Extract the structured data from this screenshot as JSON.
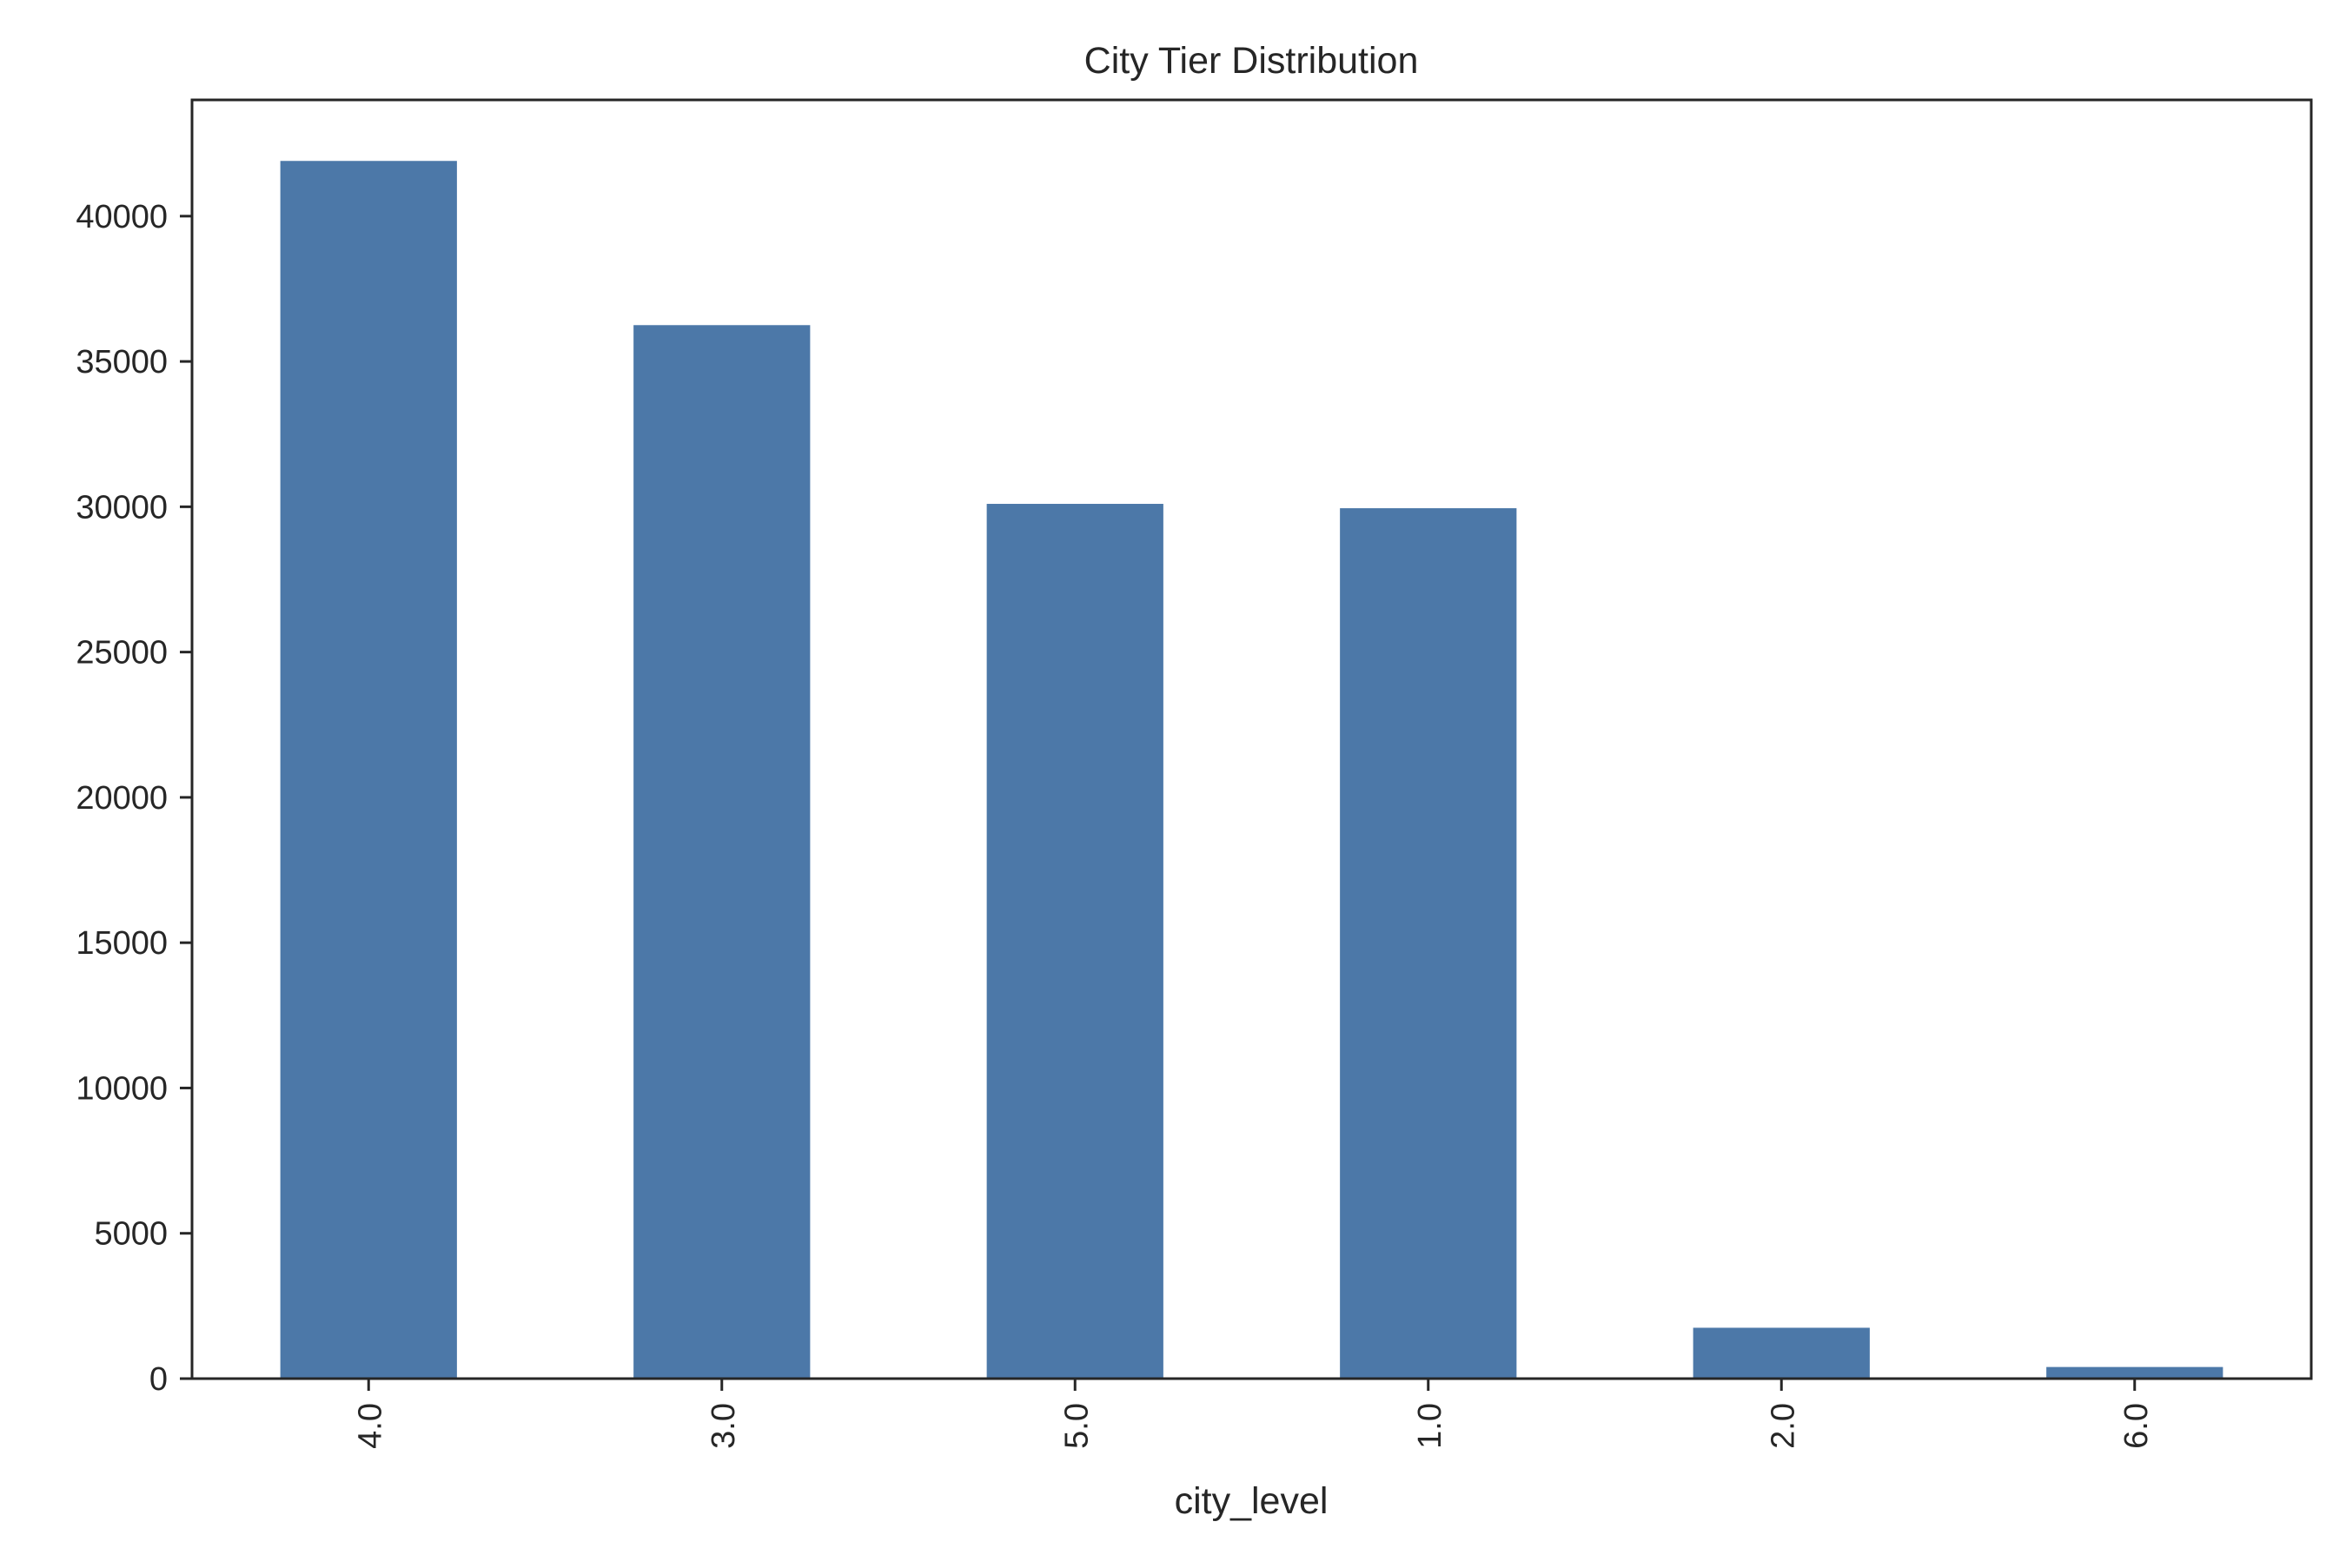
{
  "chart_data": {
    "type": "bar",
    "title": "City Tier Distribution",
    "xlabel": "city_level",
    "ylabel": "",
    "categories": [
      "4.0",
      "3.0",
      "5.0",
      "1.0",
      "2.0",
      "6.0"
    ],
    "values": [
      41900,
      36250,
      30100,
      29950,
      1750,
      400
    ],
    "ylim": [
      0,
      44000
    ],
    "yticks": [
      0,
      5000,
      10000,
      15000,
      20000,
      25000,
      30000,
      35000,
      40000
    ],
    "xtick_rotation": "vertical",
    "grid": false,
    "legend": "none",
    "bar_color": "#4c78a8",
    "axis_color": "#262626"
  }
}
